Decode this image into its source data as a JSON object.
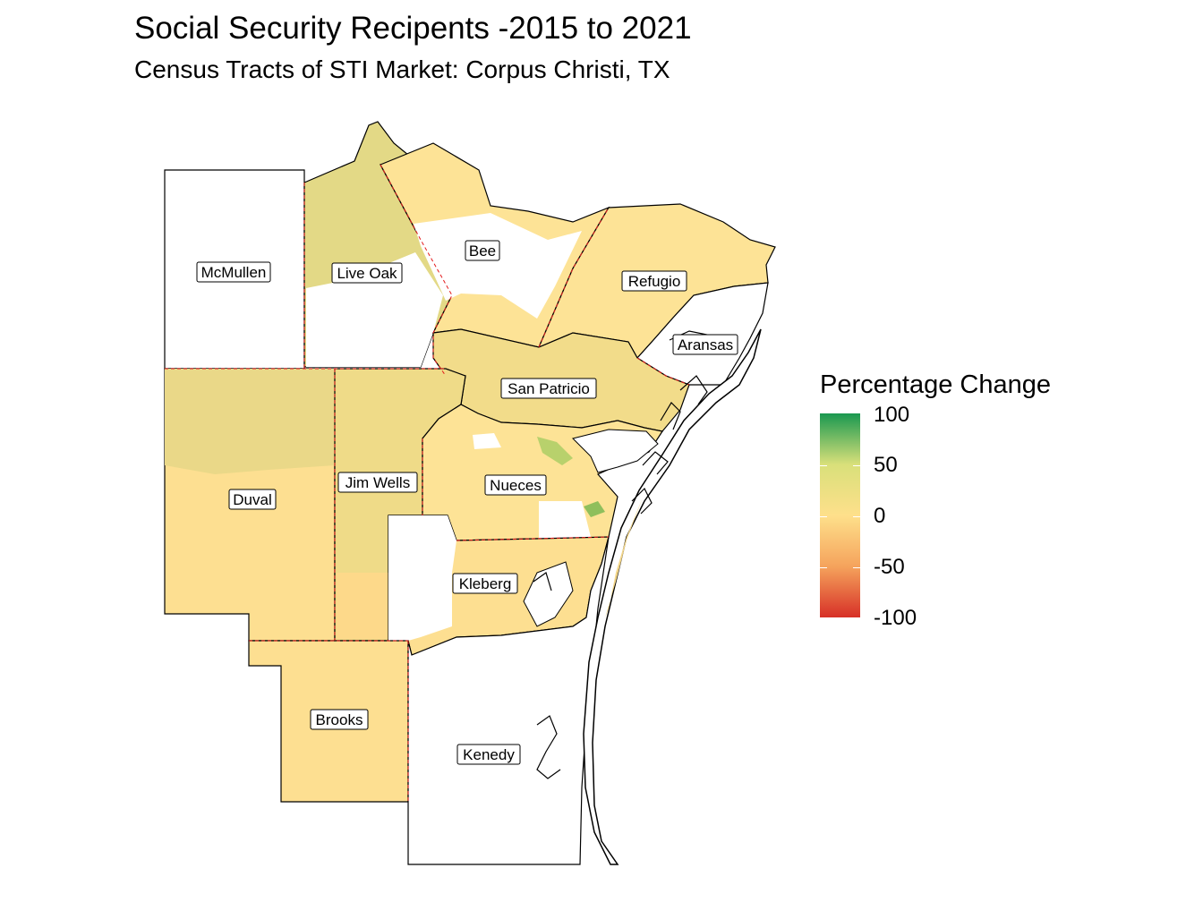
{
  "title": "Social Security Recipents -2015 to 2021",
  "subtitle": "Census Tracts of STI Market: Corpus Christi, TX",
  "legend": {
    "title": "Percentage Change",
    "ticks": [
      "100",
      "50",
      "0",
      "-50",
      "-100"
    ],
    "colors": {
      "high": "#1a9850",
      "mid": "#fee08b",
      "low": "#d73027"
    }
  },
  "counties": [
    {
      "id": "mcmullen",
      "label": "McMullen"
    },
    {
      "id": "live-oak",
      "label": "Live Oak"
    },
    {
      "id": "bee",
      "label": "Bee"
    },
    {
      "id": "refugio",
      "label": "Refugio"
    },
    {
      "id": "aransas",
      "label": "Aransas"
    },
    {
      "id": "san-patricio",
      "label": "San Patricio"
    },
    {
      "id": "duval",
      "label": "Duval"
    },
    {
      "id": "jim-wells",
      "label": "Jim Wells"
    },
    {
      "id": "nueces",
      "label": "Nueces"
    },
    {
      "id": "kleberg",
      "label": "Kleberg"
    },
    {
      "id": "brooks",
      "label": "Brooks"
    },
    {
      "id": "kenedy",
      "label": "Kenedy"
    }
  ]
}
